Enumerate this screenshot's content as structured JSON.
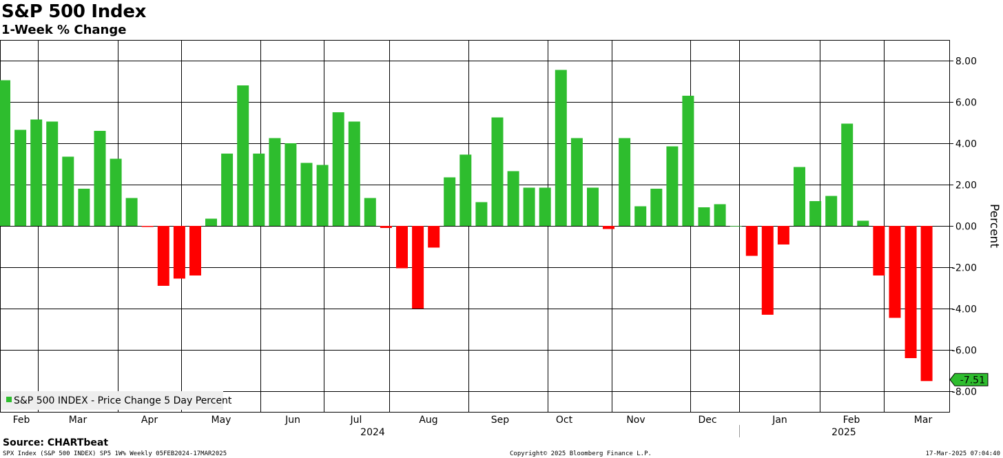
{
  "chart_data": {
    "type": "bar",
    "title": "S&P 500 Index",
    "subtitle": "1-Week % Change",
    "ylabel": "Percent",
    "ylim": [
      -8.8,
      8.8
    ],
    "yticks": [
      8.0,
      6.0,
      4.0,
      2.0,
      0.0,
      -2.0,
      -4.0,
      -6.0,
      -8.0
    ],
    "ytick_labels": [
      "8.00",
      "6.00",
      "4.00",
      "2.00",
      "0.00",
      "-2.00",
      "-4.00",
      "-6.00",
      "-8.00"
    ],
    "grid": true,
    "legend": {
      "label": "S&P 500 INDEX - Price Change 5 Day Percent",
      "placement": "bottom-left"
    },
    "months": [
      "Feb",
      "Mar",
      "Apr",
      "May",
      "Jun",
      "Jul",
      "Aug",
      "Sep",
      "Oct",
      "Nov",
      "Dec",
      "Jan",
      "Feb",
      "Mar"
    ],
    "years": [
      "2024",
      "2025"
    ],
    "last_value_label": "-7.51",
    "colors": {
      "positive": "#2ebd2e",
      "negative": "#ff0000"
    },
    "series": [
      {
        "name": "S&P 500 INDEX - Price Change 5 Day Percent",
        "x": [
          "2024-02-05",
          "2024-02-12",
          "2024-02-19",
          "2024-02-26",
          "2024-03-04",
          "2024-03-11",
          "2024-03-18",
          "2024-03-25",
          "2024-04-01",
          "2024-04-08",
          "2024-04-15",
          "2024-04-22",
          "2024-04-29",
          "2024-05-06",
          "2024-05-13",
          "2024-05-20",
          "2024-05-27",
          "2024-06-03",
          "2024-06-10",
          "2024-06-17",
          "2024-06-24",
          "2024-07-01",
          "2024-07-08",
          "2024-07-15",
          "2024-07-22",
          "2024-07-29",
          "2024-08-05",
          "2024-08-12",
          "2024-08-19",
          "2024-08-26",
          "2024-09-02",
          "2024-09-09",
          "2024-09-16",
          "2024-09-23",
          "2024-09-30",
          "2024-10-07",
          "2024-10-14",
          "2024-10-21",
          "2024-10-28",
          "2024-11-04",
          "2024-11-11",
          "2024-11-18",
          "2024-11-25",
          "2024-12-02",
          "2024-12-09",
          "2024-12-16",
          "2024-12-23",
          "2024-12-30",
          "2025-01-06",
          "2025-01-13",
          "2025-01-20",
          "2025-01-27",
          "2025-02-03",
          "2025-02-10",
          "2025-02-17",
          "2025-02-24",
          "2025-03-03",
          "2025-03-10",
          "2025-03-17"
        ],
        "values": [
          7.05,
          4.65,
          5.15,
          5.05,
          3.35,
          1.8,
          4.6,
          3.25,
          1.35,
          -0.05,
          -2.9,
          -2.55,
          -2.4,
          0.35,
          3.5,
          6.8,
          3.5,
          4.25,
          4.0,
          3.05,
          2.95,
          5.5,
          5.05,
          1.35,
          -0.1,
          -2.05,
          -4.0,
          -1.05,
          2.35,
          3.45,
          1.15,
          5.25,
          2.65,
          1.85,
          1.85,
          7.55,
          4.25,
          1.85,
          -0.15,
          4.25,
          0.95,
          1.8,
          3.85,
          6.3,
          0.9,
          1.05,
          0.0,
          -1.45,
          -4.3,
          -0.9,
          2.85,
          1.2,
          1.45,
          4.95,
          0.25,
          -2.4,
          -4.45,
          -6.4,
          -7.51
        ]
      }
    ]
  },
  "source": "Source: CHARTbeat",
  "footer": {
    "left": "SPX Index (S&P 500 INDEX) SP5 1W%  Weekly 05FEB2024-17MAR2025",
    "center": "Copyright© 2025 Bloomberg Finance L.P.",
    "right": "17-Mar-2025 07:04:40"
  }
}
